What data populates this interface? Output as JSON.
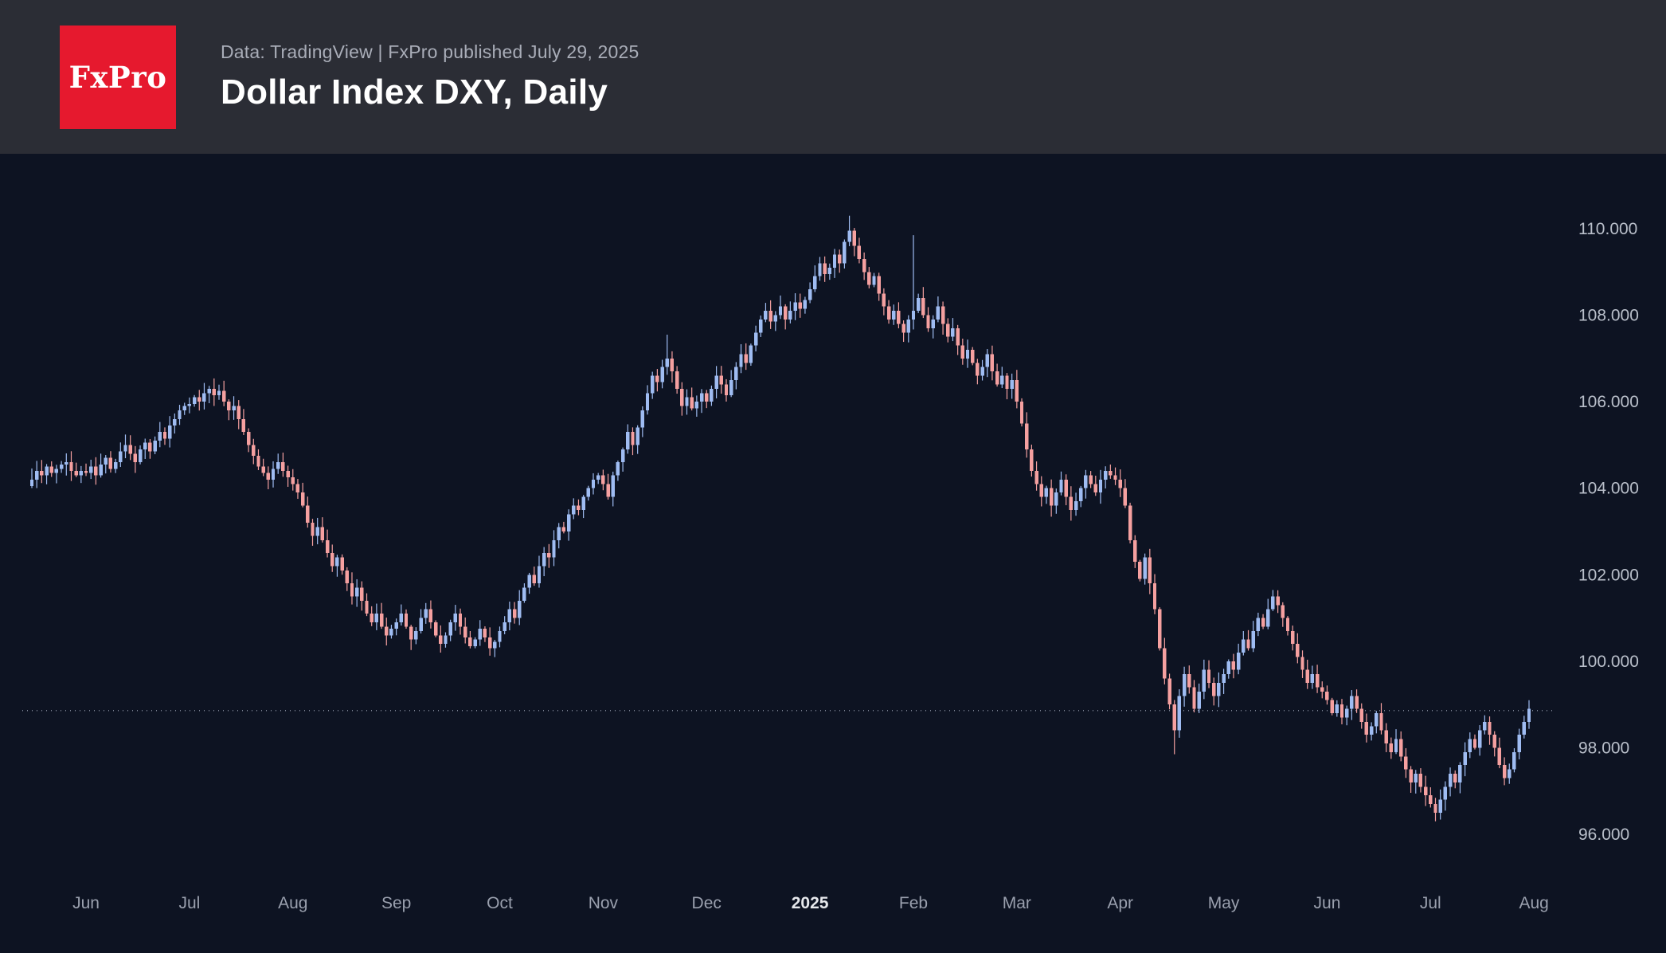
{
  "header": {
    "logo_text": "FxPro",
    "source_line": "Data: TradingView | FxPro published July 29, 2025",
    "title": "Dollar Index DXY, Daily",
    "brand_red": "#e6192e",
    "header_bg": "#2b2d35"
  },
  "chart_data": {
    "type": "candlestick",
    "title": "Dollar Index DXY, Daily",
    "symbol": "DXY",
    "timeframe": "Daily",
    "grid": false,
    "legend": false,
    "ylim": [
      95.2,
      111.0
    ],
    "y_ticks": [
      110,
      108,
      106,
      104,
      102,
      100,
      98,
      96
    ],
    "y_tick_labels": [
      "110.000",
      "108.000",
      "106.000",
      "104.000",
      "102.000",
      "100.000",
      "98.000",
      "96.000"
    ],
    "x_ticks": [
      {
        "label": "Jun",
        "index": 11,
        "bold": false
      },
      {
        "label": "Jul",
        "index": 32,
        "bold": false
      },
      {
        "label": "Aug",
        "index": 53,
        "bold": false
      },
      {
        "label": "Sep",
        "index": 74,
        "bold": false
      },
      {
        "label": "Oct",
        "index": 95,
        "bold": false
      },
      {
        "label": "Nov",
        "index": 116,
        "bold": false
      },
      {
        "label": "Dec",
        "index": 137,
        "bold": false
      },
      {
        "label": "2025",
        "index": 158,
        "bold": true
      },
      {
        "label": "Feb",
        "index": 179,
        "bold": false
      },
      {
        "label": "Mar",
        "index": 200,
        "bold": false
      },
      {
        "label": "Apr",
        "index": 221,
        "bold": false
      },
      {
        "label": "May",
        "index": 242,
        "bold": false
      },
      {
        "label": "Jun",
        "index": 263,
        "bold": false
      },
      {
        "label": "Jul",
        "index": 284,
        "bold": false
      },
      {
        "label": "Aug",
        "index": 305,
        "bold": false
      }
    ],
    "current_price": 98.86,
    "closes": [
      104.2,
      104.4,
      104.3,
      104.5,
      104.35,
      104.45,
      104.55,
      104.6,
      104.4,
      104.3,
      104.4,
      104.35,
      104.5,
      104.3,
      104.55,
      104.7,
      104.45,
      104.6,
      104.85,
      105.0,
      104.8,
      104.6,
      104.9,
      105.05,
      104.85,
      105.1,
      105.3,
      105.15,
      105.45,
      105.6,
      105.8,
      105.9,
      105.95,
      106.1,
      106.0,
      106.2,
      106.3,
      106.15,
      106.25,
      106.0,
      105.8,
      105.9,
      105.6,
      105.3,
      105.0,
      104.75,
      104.5,
      104.35,
      104.2,
      104.45,
      104.6,
      104.4,
      104.25,
      104.1,
      103.9,
      103.6,
      103.2,
      102.9,
      103.1,
      102.8,
      102.5,
      102.2,
      102.4,
      102.1,
      101.8,
      101.5,
      101.7,
      101.4,
      101.1,
      100.9,
      101.1,
      100.8,
      100.6,
      100.75,
      100.9,
      101.1,
      100.8,
      100.5,
      100.7,
      101.0,
      101.2,
      100.9,
      100.6,
      100.4,
      100.6,
      100.9,
      101.1,
      100.8,
      100.55,
      100.35,
      100.5,
      100.75,
      100.55,
      100.3,
      100.45,
      100.7,
      100.9,
      101.2,
      101.0,
      101.4,
      101.7,
      102.0,
      101.8,
      102.2,
      102.5,
      102.4,
      102.8,
      103.1,
      103.0,
      103.4,
      103.6,
      103.5,
      103.8,
      104.0,
      104.2,
      104.3,
      104.1,
      103.8,
      104.3,
      104.6,
      104.9,
      105.3,
      105.0,
      105.4,
      105.8,
      106.2,
      106.6,
      106.45,
      106.8,
      107.0,
      106.7,
      106.3,
      105.9,
      106.1,
      105.85,
      106.0,
      106.2,
      106.0,
      106.3,
      106.6,
      106.4,
      106.15,
      106.5,
      106.8,
      107.1,
      106.9,
      107.3,
      107.6,
      107.9,
      108.1,
      107.85,
      108.0,
      108.2,
      107.9,
      108.1,
      108.3,
      108.15,
      108.35,
      108.6,
      108.9,
      109.2,
      108.95,
      109.1,
      109.4,
      109.2,
      109.7,
      109.95,
      109.6,
      109.3,
      109.0,
      108.7,
      108.9,
      108.5,
      108.2,
      107.9,
      108.1,
      107.8,
      107.6,
      107.9,
      108.1,
      108.4,
      108.0,
      107.7,
      107.9,
      108.2,
      107.8,
      107.5,
      107.7,
      107.3,
      107.0,
      107.2,
      106.9,
      106.6,
      106.8,
      107.1,
      106.7,
      106.4,
      106.6,
      106.3,
      106.5,
      106.0,
      105.5,
      104.9,
      104.4,
      104.1,
      103.8,
      104.0,
      103.6,
      103.9,
      104.2,
      103.8,
      103.5,
      103.7,
      104.0,
      104.3,
      104.1,
      103.9,
      104.2,
      104.4,
      104.3,
      104.2,
      104.0,
      103.6,
      102.8,
      102.3,
      101.9,
      102.4,
      101.8,
      101.2,
      100.3,
      99.6,
      99.0,
      98.4,
      99.2,
      99.7,
      99.4,
      98.9,
      99.3,
      99.8,
      99.5,
      99.2,
      99.5,
      99.7,
      100.0,
      99.8,
      100.2,
      100.5,
      100.3,
      100.7,
      101.0,
      100.8,
      101.2,
      101.5,
      101.3,
      101.0,
      100.7,
      100.4,
      100.1,
      99.8,
      99.5,
      99.7,
      99.4,
      99.3,
      99.1,
      98.8,
      99.0,
      98.7,
      98.9,
      99.2,
      98.9,
      98.6,
      98.3,
      98.5,
      98.8,
      98.4,
      98.1,
      97.9,
      98.2,
      97.8,
      97.5,
      97.2,
      97.4,
      97.1,
      96.9,
      96.7,
      96.5,
      96.8,
      97.1,
      97.4,
      97.2,
      97.6,
      97.9,
      98.2,
      98.0,
      98.4,
      98.6,
      98.3,
      98.0,
      97.6,
      97.3,
      97.5,
      97.9,
      98.3,
      98.6,
      98.9
    ],
    "wick_overrides": {
      "129": {
        "high": 107.55
      },
      "166": {
        "high": 110.3
      },
      "179": {
        "high": 109.85
      },
      "232": {
        "low": 97.85
      },
      "285": {
        "low": 96.3
      }
    },
    "colors": {
      "up": "#9fbcf2",
      "down": "#f5a0a0",
      "background": "#0d1322",
      "axis_text": "#b9bfca",
      "x_axis_text": "#9aa0ae",
      "bold_tick_text": "#e6e8ec",
      "current_price_line": "#aeb6c8"
    }
  }
}
